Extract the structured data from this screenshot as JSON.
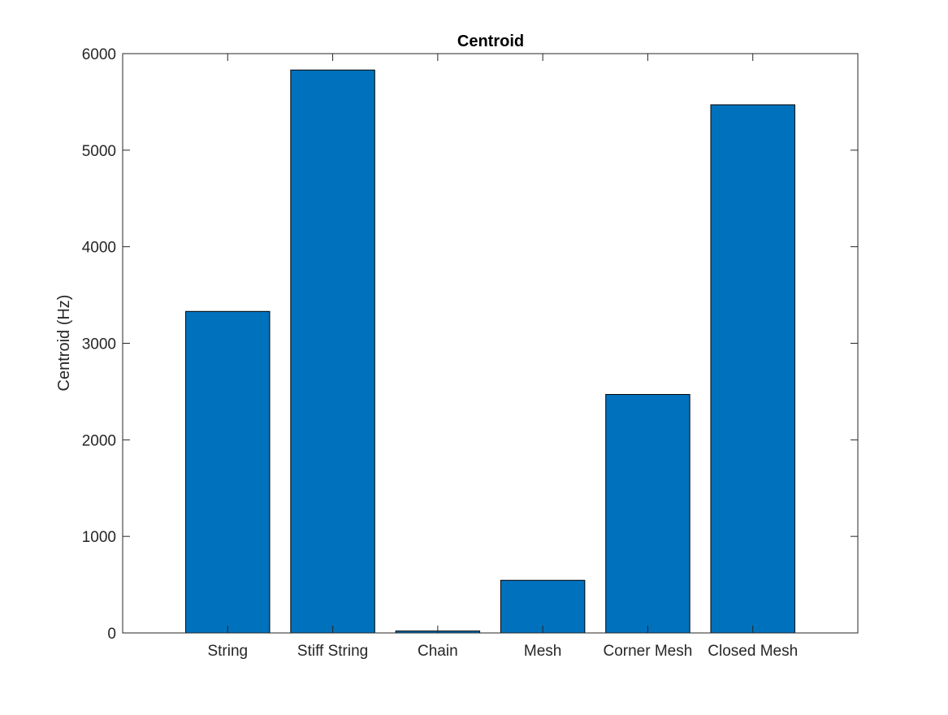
{
  "chart_data": {
    "type": "bar",
    "title": "Centroid",
    "xlabel": "",
    "ylabel": "Centroid (Hz)",
    "categories": [
      "String",
      "Stiff String",
      "Chain",
      "Mesh",
      "Corner Mesh",
      "Closed Mesh"
    ],
    "values": [
      3330,
      5830,
      20,
      545,
      2470,
      5470
    ],
    "xlim": [
      0,
      7
    ],
    "ylim": [
      0,
      6000
    ],
    "yticks": [
      0,
      1000,
      2000,
      3000,
      4000,
      5000,
      6000
    ],
    "grid": false,
    "legend": "none",
    "bar_color": "#0072BD",
    "bar_edge_color": "#000000",
    "axis_color": "#262626",
    "background": "#ffffff"
  }
}
